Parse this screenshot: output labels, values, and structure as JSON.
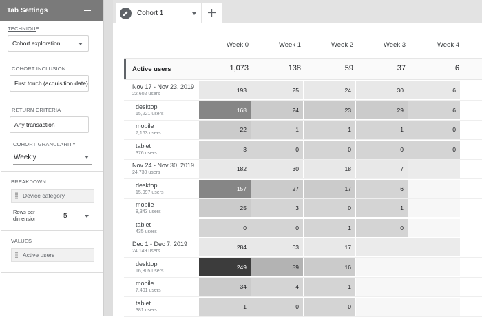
{
  "settings": {
    "title": "Tab Settings",
    "technique_label": "TECHNIQUE",
    "technique_value": "Cohort exploration",
    "inclusion_label": "COHORT INCLUSION",
    "inclusion_value": "First touch (acquisition date)",
    "return_label": "RETURN CRITERIA",
    "return_value": "Any transaction",
    "granularity_label": "COHORT GRANULARITY",
    "granularity_value": "Weekly",
    "breakdown_label": "BREAKDOWN",
    "breakdown_value": "Device category",
    "rows_label": "Rows per dimension",
    "rows_value": "5",
    "values_label": "VALUES",
    "values_value": "Active users"
  },
  "tabs": {
    "active": "Cohort 1"
  },
  "table": {
    "columns": [
      "Week 0",
      "Week 1",
      "Week 2",
      "Week 3",
      "Week 4"
    ],
    "active_label": "Active users",
    "totals": [
      "1,073",
      "138",
      "59",
      "37",
      "6"
    ],
    "rows": [
      {
        "label": "Nov 17 - Nov 23, 2019",
        "sub": "22,602 users",
        "level": "cohort",
        "values": [
          "193",
          "25",
          "24",
          "30",
          "6"
        ]
      },
      {
        "label": "desktop",
        "sub": "15,221 users",
        "level": "device",
        "values": [
          "168",
          "24",
          "23",
          "29",
          "6"
        ]
      },
      {
        "label": "mobile",
        "sub": "7,163 users",
        "level": "device",
        "values": [
          "22",
          "1",
          "1",
          "1",
          "0"
        ]
      },
      {
        "label": "tablet",
        "sub": "376 users",
        "level": "device",
        "values": [
          "3",
          "0",
          "0",
          "0",
          "0"
        ]
      },
      {
        "label": "Nov 24 - Nov 30, 2019",
        "sub": "24,730 users",
        "level": "cohort",
        "values": [
          "182",
          "30",
          "18",
          "7",
          ""
        ]
      },
      {
        "label": "desktop",
        "sub": "15,997 users",
        "level": "device",
        "values": [
          "157",
          "27",
          "17",
          "6",
          ""
        ]
      },
      {
        "label": "mobile",
        "sub": "8,343 users",
        "level": "device",
        "values": [
          "25",
          "3",
          "0",
          "1",
          ""
        ]
      },
      {
        "label": "tablet",
        "sub": "435 users",
        "level": "device",
        "values": [
          "0",
          "0",
          "1",
          "0",
          ""
        ]
      },
      {
        "label": "Dec 1 - Dec 7, 2019",
        "sub": "24,149 users",
        "level": "cohort",
        "values": [
          "284",
          "63",
          "17",
          "",
          ""
        ]
      },
      {
        "label": "desktop",
        "sub": "16,305 users",
        "level": "device",
        "values": [
          "249",
          "59",
          "16",
          "",
          ""
        ]
      },
      {
        "label": "mobile",
        "sub": "7,401 users",
        "level": "device",
        "values": [
          "34",
          "4",
          "1",
          "",
          ""
        ]
      },
      {
        "label": "tablet",
        "sub": "381 users",
        "level": "device",
        "values": [
          "1",
          "0",
          "0",
          "",
          ""
        ]
      }
    ]
  }
}
